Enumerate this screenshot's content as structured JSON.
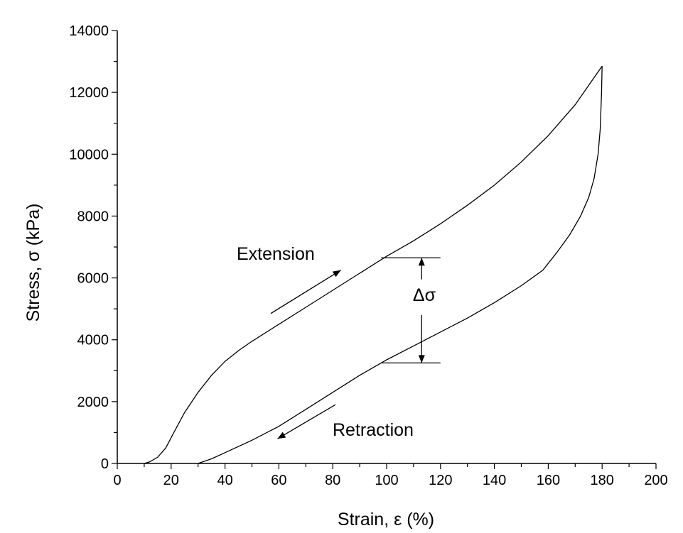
{
  "chart_data": {
    "type": "line",
    "xlabel": "Strain,  ε  (%)",
    "ylabel": "Stress,  σ  (kPa)",
    "xlim": [
      0,
      200
    ],
    "ylim": [
      0,
      14000
    ],
    "x_ticks": [
      "0",
      "20",
      "40",
      "60",
      "80",
      "100",
      "120",
      "140",
      "160",
      "180",
      "200"
    ],
    "y_ticks": [
      "0",
      "2000",
      "4000",
      "6000",
      "8000",
      "10000",
      "12000",
      "14000"
    ],
    "grid": false,
    "legend": "none",
    "series": [
      {
        "x": [
          10,
          12,
          15,
          18,
          21,
          25,
          30,
          35,
          40,
          45,
          50,
          60,
          70,
          80,
          90,
          100,
          110,
          120,
          130,
          140,
          150,
          160,
          170,
          180
        ],
        "y": [
          0,
          50,
          200,
          500,
          1000,
          1650,
          2300,
          2850,
          3300,
          3650,
          3950,
          4500,
          5050,
          5600,
          6150,
          6700,
          7200,
          7750,
          8350,
          9000,
          9750,
          10600,
          11600,
          12850
        ]
      },
      {
        "x": [
          180,
          179.8,
          179.3,
          178.5,
          177,
          175,
          172,
          168,
          163,
          158,
          150,
          140,
          130,
          120,
          110,
          100,
          90,
          80,
          70,
          60,
          50,
          40,
          35,
          30
        ],
        "y": [
          12850,
          12000,
          10800,
          10000,
          9200,
          8600,
          8000,
          7400,
          6800,
          6250,
          5750,
          5200,
          4700,
          4250,
          3800,
          3350,
          2850,
          2300,
          1750,
          1200,
          750,
          350,
          150,
          0
        ]
      }
    ],
    "annotations": {
      "extension_label": "Extension",
      "retraction_label": "Retraction",
      "delta_label": "Δσ"
    }
  }
}
